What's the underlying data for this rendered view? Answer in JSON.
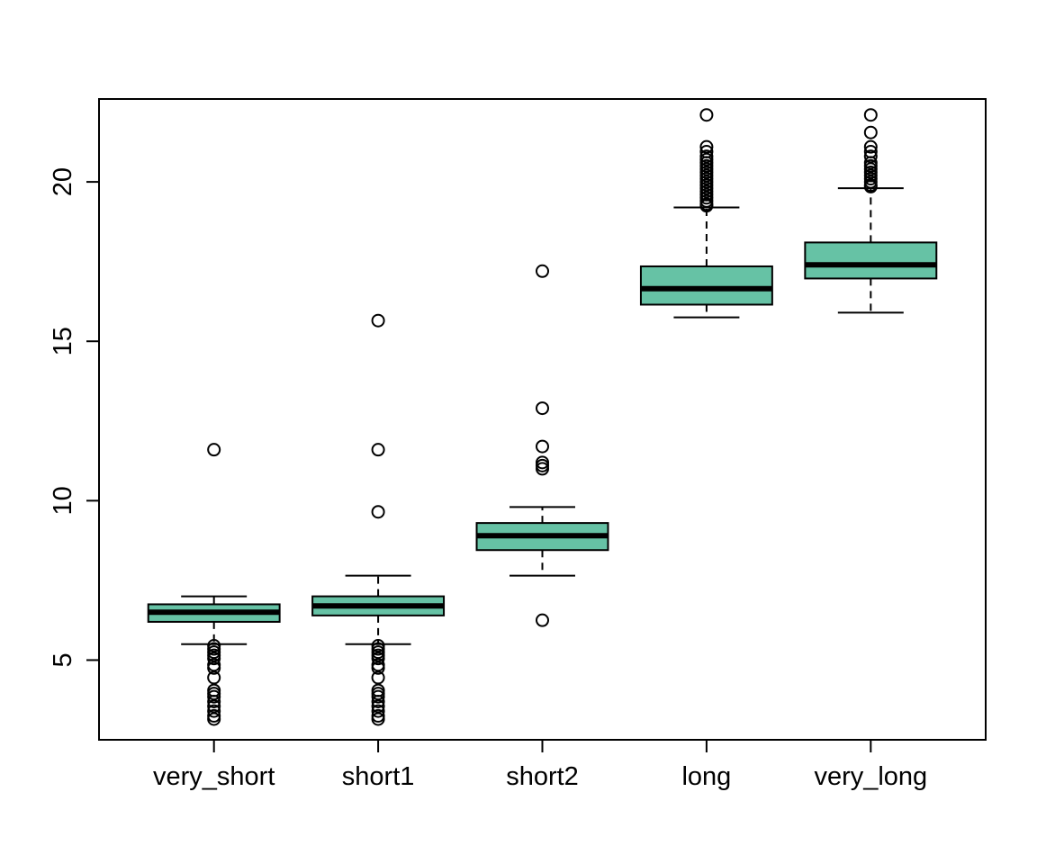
{
  "chart_data": {
    "type": "boxplot",
    "title": "",
    "xlabel": "",
    "ylabel": "",
    "ylim": [
      2.5,
      22.6
    ],
    "yticks": [
      5,
      10,
      15,
      20
    ],
    "categories": [
      "very_short",
      "short1",
      "short2",
      "long",
      "very_long"
    ],
    "box_color": "#66C2A5",
    "boxes": [
      {
        "name": "very_short",
        "whisker_low": 5.5,
        "q1": 6.2,
        "median": 6.5,
        "q3": 6.75,
        "whisker_high": 7.0,
        "outliers": [
          11.6,
          5.45,
          5.35,
          5.25,
          5.15,
          5.05,
          4.85,
          4.75,
          4.45,
          4.05,
          3.95,
          3.85,
          3.7,
          3.55,
          3.4,
          3.25,
          3.15
        ]
      },
      {
        "name": "short1",
        "whisker_low": 5.5,
        "q1": 6.4,
        "median": 6.7,
        "q3": 7.0,
        "whisker_high": 7.65,
        "outliers": [
          15.65,
          11.6,
          9.65,
          5.45,
          5.35,
          5.25,
          5.15,
          5.05,
          4.85,
          4.75,
          4.45,
          4.05,
          3.95,
          3.85,
          3.7,
          3.55,
          3.4,
          3.25,
          3.15
        ]
      },
      {
        "name": "short2",
        "whisker_low": 7.65,
        "q1": 8.45,
        "median": 8.9,
        "q3": 9.3,
        "whisker_high": 9.8,
        "outliers": [
          17.2,
          12.9,
          11.7,
          11.2,
          11.1,
          11.0,
          6.25
        ]
      },
      {
        "name": "long",
        "whisker_low": 15.75,
        "q1": 16.15,
        "median": 16.65,
        "q3": 17.35,
        "whisker_high": 19.2,
        "outliers": [
          22.1,
          21.1,
          20.95,
          20.8,
          20.7,
          20.6,
          20.5,
          20.4,
          20.3,
          20.2,
          20.1,
          20.0,
          19.9,
          19.8,
          19.7,
          19.6,
          19.5,
          19.4,
          19.3,
          19.25
        ]
      },
      {
        "name": "very_long",
        "whisker_low": 15.9,
        "q1": 16.97,
        "median": 17.4,
        "q3": 18.1,
        "whisker_high": 19.8,
        "outliers": [
          22.1,
          21.55,
          21.1,
          20.95,
          20.8,
          20.6,
          20.5,
          20.4,
          20.3,
          20.2,
          20.1,
          20.0,
          19.9,
          19.85
        ]
      }
    ]
  }
}
